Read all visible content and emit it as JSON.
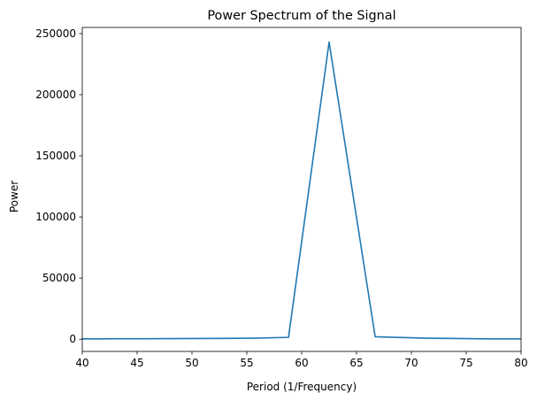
{
  "chart_data": {
    "type": "line",
    "title": "Power Spectrum of the Signal",
    "xlabel": "Period (1/Frequency)",
    "ylabel": "Power",
    "xlim": [
      40,
      80
    ],
    "ylim": [
      -10000,
      255000
    ],
    "xticks": [
      40,
      45,
      50,
      55,
      60,
      65,
      70,
      75,
      80
    ],
    "yticks": [
      0,
      50000,
      100000,
      150000,
      200000,
      250000
    ],
    "grid": false,
    "series": [
      {
        "color": "#1f77b4",
        "x": [
          38.5,
          40,
          41.7,
          43.5,
          45.5,
          47.6,
          50,
          52.6,
          55.6,
          58.8,
          62.5,
          66.7,
          71.4,
          76.9,
          80
        ],
        "y": [
          300,
          300,
          300,
          350,
          400,
          450,
          550,
          650,
          800,
          1500,
          243000,
          2000,
          800,
          300,
          250
        ]
      }
    ]
  }
}
